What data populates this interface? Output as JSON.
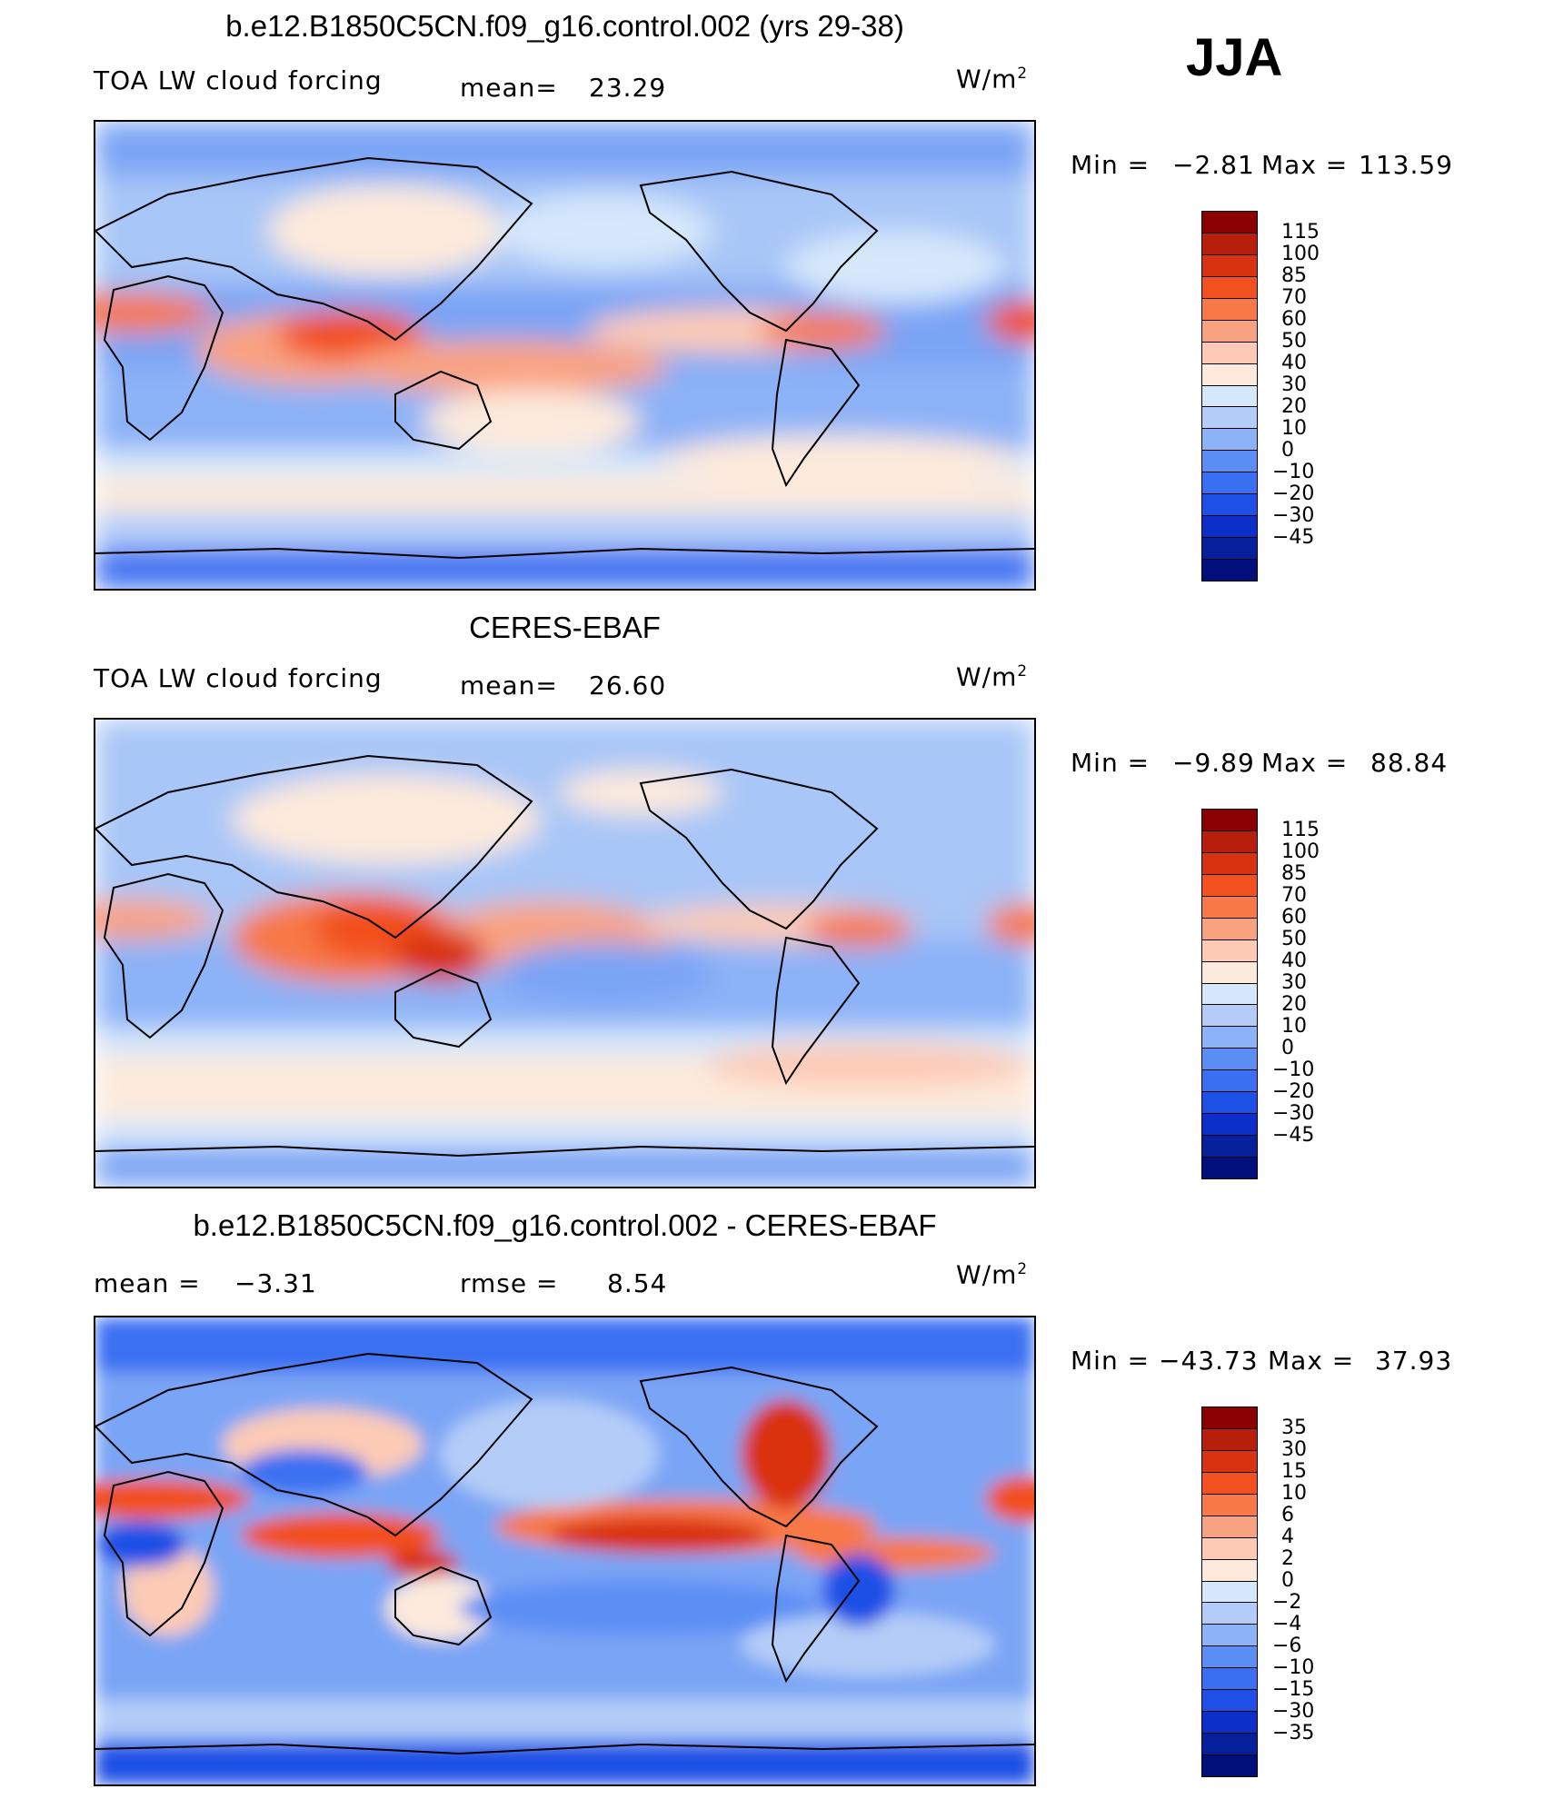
{
  "season": "JJA",
  "panels": [
    {
      "title": "b.e12.B1850C5CN.f09_g16.control.002 (yrs 29-38)",
      "variable": "TOA LW cloud forcing",
      "stat1_label": "mean=",
      "stat1_value": "23.29",
      "units_base": "W/m",
      "units_exp": "2",
      "min_label": "Min =",
      "min_value": "−2.81",
      "max_label": "Max =",
      "max_value": "113.59",
      "colors": [
        "#8b0000",
        "#b81e0c",
        "#d93210",
        "#f2501e",
        "#f87847",
        "#f9a281",
        "#fdcbb5",
        "#fdeadc",
        "#d6e8fb",
        "#b4cdf8",
        "#8cb2f7",
        "#5b8ef4",
        "#3b6ff2",
        "#1e4fe6",
        "#0b2fc8",
        "#06209b",
        "#000f7a"
      ],
      "ticks": [
        "115",
        "100",
        "85",
        "70",
        "60",
        "50",
        "40",
        "30",
        "20",
        "10",
        "0",
        "−10",
        "−20",
        "−30",
        "−45"
      ]
    },
    {
      "title": "CERES-EBAF",
      "variable": "TOA LW cloud forcing",
      "stat1_label": "mean=",
      "stat1_value": "26.60",
      "units_base": "W/m",
      "units_exp": "2",
      "min_label": "Min =",
      "min_value": "−9.89",
      "max_label": "Max =",
      "max_value": "88.84",
      "colors": [
        "#8b0000",
        "#b81e0c",
        "#d93210",
        "#f2501e",
        "#f87847",
        "#f9a281",
        "#fdcbb5",
        "#fdeadc",
        "#d6e8fb",
        "#b4cdf8",
        "#8cb2f7",
        "#5b8ef4",
        "#3b6ff2",
        "#1e4fe6",
        "#0b2fc8",
        "#06209b",
        "#000f7a"
      ],
      "ticks": [
        "115",
        "100",
        "85",
        "70",
        "60",
        "50",
        "40",
        "30",
        "20",
        "10",
        "0",
        "−10",
        "−20",
        "−30",
        "−45"
      ]
    },
    {
      "title": "b.e12.B1850C5CN.f09_g16.control.002 - CERES-EBAF",
      "stat1_label": "mean =",
      "stat1_value": "−3.31",
      "stat2_label": "rmse =",
      "stat2_value": "8.54",
      "units_base": "W/m",
      "units_exp": "2",
      "min_label": "Min =",
      "min_value": "−43.73",
      "max_label": "Max =",
      "max_value": "37.93",
      "colors": [
        "#8b0000",
        "#b81e0c",
        "#d93210",
        "#f2501e",
        "#f87847",
        "#f9a281",
        "#fdcbb5",
        "#fdeadc",
        "#d6e8fb",
        "#b4cdf8",
        "#8cb2f7",
        "#5b8ef4",
        "#3b6ff2",
        "#1e4fe6",
        "#0b2fc8",
        "#06209b",
        "#000f7a"
      ],
      "ticks": [
        "35",
        "30",
        "15",
        "10",
        "6",
        "4",
        "2",
        "0",
        "−2",
        "−4",
        "−6",
        "−10",
        "−15",
        "−30",
        "−35"
      ]
    }
  ]
}
